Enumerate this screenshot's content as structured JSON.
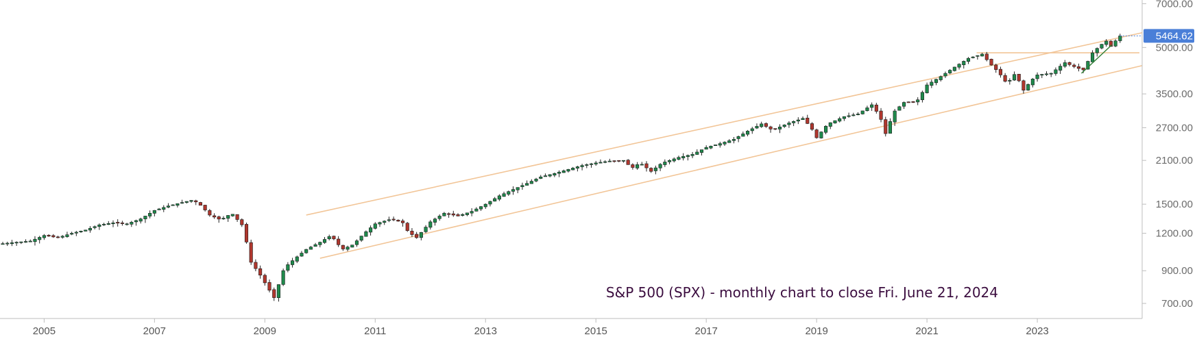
{
  "chart_data": {
    "type": "candlestick",
    "title": "S&P 500 (SPX) - monthly chart to close Fri. June 21, 2024",
    "y_scale": "log",
    "ylim": [
      640,
      7050
    ],
    "xlim": [
      2004.2,
      2024.9
    ],
    "y_ticks": [
      {
        "value": 7000,
        "label": "7000.00"
      },
      {
        "value": 5000,
        "label": "5000.00"
      },
      {
        "value": 3500,
        "label": "3500.00"
      },
      {
        "value": 2700,
        "label": "2700.00"
      },
      {
        "value": 2100,
        "label": "2100.00"
      },
      {
        "value": 1500,
        "label": "1500.00"
      },
      {
        "value": 1200,
        "label": "1200.00"
      },
      {
        "value": 900,
        "label": "900.00"
      },
      {
        "value": 700,
        "label": "700.00"
      }
    ],
    "x_ticks": [
      {
        "value": 2005,
        "label": "2005"
      },
      {
        "value": 2007,
        "label": "2007"
      },
      {
        "value": 2009,
        "label": "2009"
      },
      {
        "value": 2011,
        "label": "2011"
      },
      {
        "value": 2013,
        "label": "2013"
      },
      {
        "value": 2015,
        "label": "2015"
      },
      {
        "value": 2017,
        "label": "2017"
      },
      {
        "value": 2019,
        "label": "2019"
      },
      {
        "value": 2021,
        "label": "2021"
      },
      {
        "value": 2023,
        "label": "2023"
      }
    ],
    "last_price": {
      "value": 5464.62,
      "label": "5464.62"
    },
    "closes": [
      [
        2004.25,
        1108
      ],
      [
        2004.5,
        1120
      ],
      [
        2004.75,
        1130
      ],
      [
        2005.0,
        1180
      ],
      [
        2005.25,
        1160
      ],
      [
        2005.5,
        1200
      ],
      [
        2005.75,
        1230
      ],
      [
        2006.0,
        1280
      ],
      [
        2006.25,
        1300
      ],
      [
        2006.5,
        1290
      ],
      [
        2006.75,
        1340
      ],
      [
        2007.0,
        1430
      ],
      [
        2007.25,
        1480
      ],
      [
        2007.5,
        1520
      ],
      [
        2007.7,
        1550
      ],
      [
        2007.85,
        1480
      ],
      [
        2008.0,
        1380
      ],
      [
        2008.2,
        1330
      ],
      [
        2008.4,
        1400
      ],
      [
        2008.6,
        1270
      ],
      [
        2008.75,
        960
      ],
      [
        2008.9,
        880
      ],
      [
        2009.0,
        820
      ],
      [
        2009.17,
        730
      ],
      [
        2009.35,
        920
      ],
      [
        2009.55,
        990
      ],
      [
        2009.75,
        1060
      ],
      [
        2010.0,
        1120
      ],
      [
        2010.2,
        1180
      ],
      [
        2010.4,
        1060
      ],
      [
        2010.6,
        1100
      ],
      [
        2010.8,
        1200
      ],
      [
        2011.0,
        1290
      ],
      [
        2011.3,
        1340
      ],
      [
        2011.5,
        1300
      ],
      [
        2011.6,
        1210
      ],
      [
        2011.75,
        1160
      ],
      [
        2012.0,
        1310
      ],
      [
        2012.25,
        1400
      ],
      [
        2012.5,
        1370
      ],
      [
        2012.75,
        1420
      ],
      [
        2013.0,
        1500
      ],
      [
        2013.25,
        1600
      ],
      [
        2013.5,
        1680
      ],
      [
        2013.75,
        1760
      ],
      [
        2014.0,
        1850
      ],
      [
        2014.25,
        1900
      ],
      [
        2014.5,
        1960
      ],
      [
        2014.75,
        2020
      ],
      [
        2015.0,
        2060
      ],
      [
        2015.25,
        2090
      ],
      [
        2015.5,
        2100
      ],
      [
        2015.65,
        1980
      ],
      [
        2015.8,
        2060
      ],
      [
        2016.0,
        1930
      ],
      [
        2016.2,
        2060
      ],
      [
        2016.5,
        2150
      ],
      [
        2016.75,
        2200
      ],
      [
        2017.0,
        2320
      ],
      [
        2017.25,
        2390
      ],
      [
        2017.5,
        2470
      ],
      [
        2017.75,
        2630
      ],
      [
        2018.0,
        2780
      ],
      [
        2018.2,
        2650
      ],
      [
        2018.5,
        2800
      ],
      [
        2018.75,
        2900
      ],
      [
        2018.9,
        2700
      ],
      [
        2019.0,
        2500
      ],
      [
        2019.2,
        2780
      ],
      [
        2019.5,
        2940
      ],
      [
        2019.75,
        3000
      ],
      [
        2020.0,
        3220
      ],
      [
        2020.15,
        2940
      ],
      [
        2020.25,
        2580
      ],
      [
        2020.4,
        3050
      ],
      [
        2020.6,
        3300
      ],
      [
        2020.8,
        3270
      ],
      [
        2021.0,
        3750
      ],
      [
        2021.25,
        4000
      ],
      [
        2021.5,
        4300
      ],
      [
        2021.75,
        4600
      ],
      [
        2022.0,
        4750
      ],
      [
        2022.15,
        4400
      ],
      [
        2022.3,
        4130
      ],
      [
        2022.45,
        3780
      ],
      [
        2022.6,
        4100
      ],
      [
        2022.75,
        3600
      ],
      [
        2022.9,
        3900
      ],
      [
        2023.0,
        4050
      ],
      [
        2023.25,
        4100
      ],
      [
        2023.5,
        4450
      ],
      [
        2023.7,
        4290
      ],
      [
        2023.83,
        4200
      ],
      [
        2024.0,
        4800
      ],
      [
        2024.15,
        5100
      ],
      [
        2024.25,
        5250
      ],
      [
        2024.33,
        5030
      ],
      [
        2024.42,
        5270
      ],
      [
        2024.5,
        5464.62
      ]
    ],
    "channel_lines": [
      {
        "color": "#f2c597",
        "points": [
          [
            2009.75,
            1380
          ],
          [
            2024.9,
            5600
          ]
        ]
      },
      {
        "color": "#f2c597",
        "points": [
          [
            2010.0,
            990
          ],
          [
            2024.9,
            4350
          ]
        ]
      },
      {
        "color": "#f2c597",
        "points": [
          [
            2021.9,
            4800
          ],
          [
            2024.85,
            4800
          ]
        ]
      }
    ],
    "trend_lines": [
      {
        "color": "#2e7d32",
        "points": [
          [
            2023.8,
            4100
          ],
          [
            2024.35,
            5100
          ]
        ]
      }
    ],
    "colors": {
      "up": "#1f8a4c",
      "down": "#b0372e",
      "wick": "#222222",
      "price_label_bg": "#4a7fd8",
      "title": "#3b0d3f",
      "axis_text": "#6b6b6b"
    }
  }
}
